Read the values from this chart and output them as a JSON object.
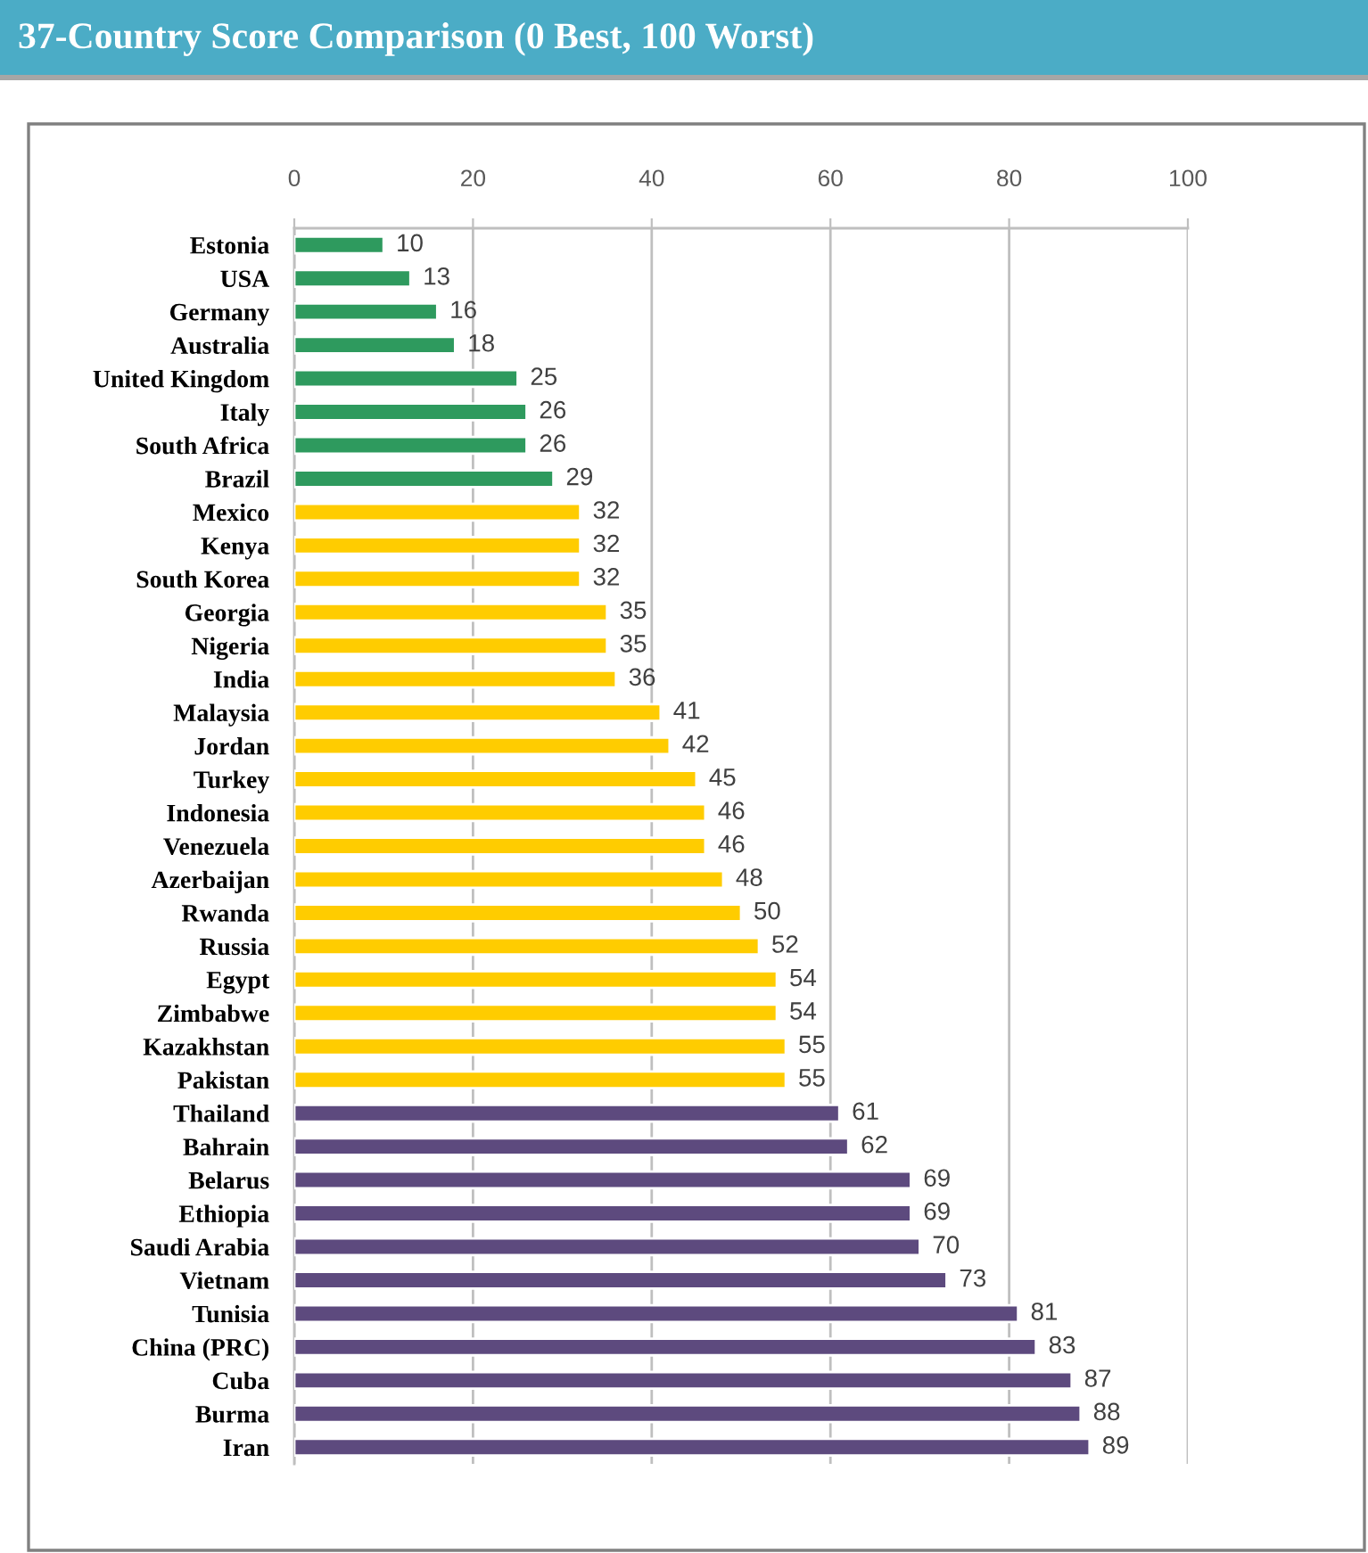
{
  "chart_data": {
    "type": "bar",
    "orientation": "horizontal",
    "title": "37-Country Score Comparison (0 Best, 100 Worst)",
    "categories": [
      "Estonia",
      "USA",
      "Germany",
      "Australia",
      "United Kingdom",
      "Italy",
      "South Africa",
      "Brazil",
      "Mexico",
      "Kenya",
      "South Korea",
      "Georgia",
      "Nigeria",
      "India",
      "Malaysia",
      "Jordan",
      "Turkey",
      "Indonesia",
      "Venezuela",
      "Azerbaijan",
      "Rwanda",
      "Russia",
      "Egypt",
      "Zimbabwe",
      "Kazakhstan",
      "Pakistan",
      "Thailand",
      "Bahrain",
      "Belarus",
      "Ethiopia",
      "Saudi Arabia",
      "Vietnam",
      "Tunisia",
      "China (PRC)",
      "Cuba",
      "Burma",
      "Iran"
    ],
    "values": [
      10,
      13,
      16,
      18,
      25,
      26,
      26,
      29,
      32,
      32,
      32,
      35,
      35,
      36,
      41,
      42,
      45,
      46,
      46,
      48,
      50,
      52,
      54,
      54,
      55,
      55,
      61,
      62,
      69,
      69,
      70,
      73,
      81,
      83,
      87,
      88,
      89
    ],
    "colors": [
      "#2e9a5e",
      "#2e9a5e",
      "#2e9a5e",
      "#2e9a5e",
      "#2e9a5e",
      "#2e9a5e",
      "#2e9a5e",
      "#2e9a5e",
      "#ffcc00",
      "#ffcc00",
      "#ffcc00",
      "#ffcc00",
      "#ffcc00",
      "#ffcc00",
      "#ffcc00",
      "#ffcc00",
      "#ffcc00",
      "#ffcc00",
      "#ffcc00",
      "#ffcc00",
      "#ffcc00",
      "#ffcc00",
      "#ffcc00",
      "#ffcc00",
      "#ffcc00",
      "#ffcc00",
      "#5d4a7e",
      "#5d4a7e",
      "#5d4a7e",
      "#5d4a7e",
      "#5d4a7e",
      "#5d4a7e",
      "#5d4a7e",
      "#5d4a7e",
      "#5d4a7e",
      "#5d4a7e",
      "#5d4a7e"
    ],
    "xlim": [
      0,
      100
    ],
    "xticks": [
      0,
      20,
      40,
      60,
      80,
      100
    ],
    "grid": "x",
    "data_labels": true
  }
}
